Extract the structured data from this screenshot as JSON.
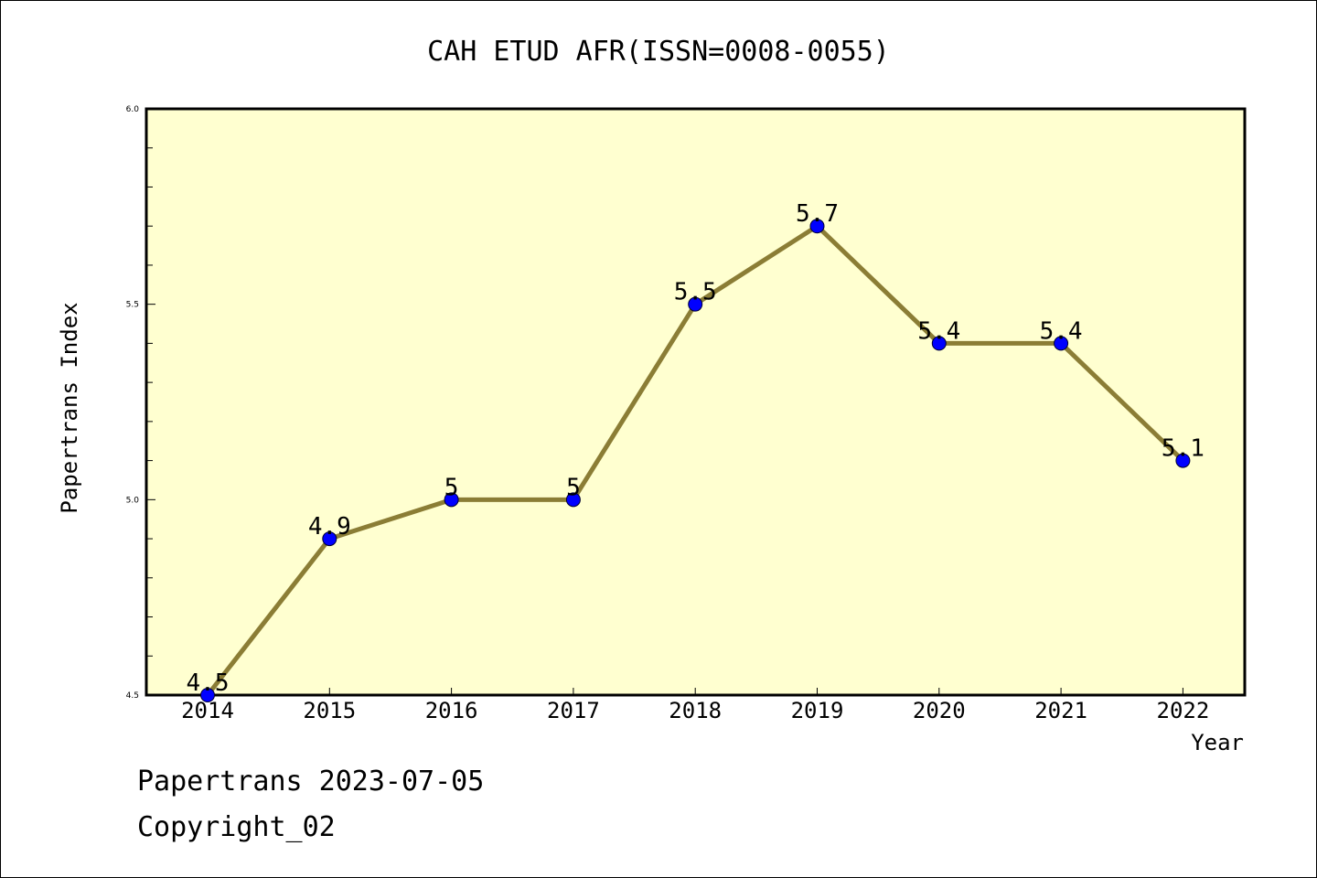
{
  "chart_data": {
    "type": "line",
    "title": "CAH ETUD AFR(ISSN=0008-0055)",
    "xlabel": "Year",
    "ylabel": "Papertrans Index",
    "x": [
      "2014",
      "2015",
      "2016",
      "2017",
      "2018",
      "2019",
      "2020",
      "2021",
      "2022"
    ],
    "values": [
      4.5,
      4.9,
      5,
      5,
      5.5,
      5.7,
      5.4,
      5.4,
      5.1
    ],
    "data_labels": [
      "4.5",
      "4.9",
      "5",
      "5",
      "5.5",
      "5.7",
      "5.4",
      "5.4",
      "5.1"
    ],
    "ylim": [
      4.5,
      6.0
    ],
    "y_ticks": [
      "4.5",
      "5.0",
      "5.5",
      "6.0"
    ],
    "grid": false,
    "colors": {
      "plot_background": "#ffffd0",
      "line": "#8b7d35",
      "marker": "#0000ff"
    }
  },
  "footer": {
    "date_line": "Papertrans 2023-07-05",
    "copyright": "Copyright_02"
  }
}
